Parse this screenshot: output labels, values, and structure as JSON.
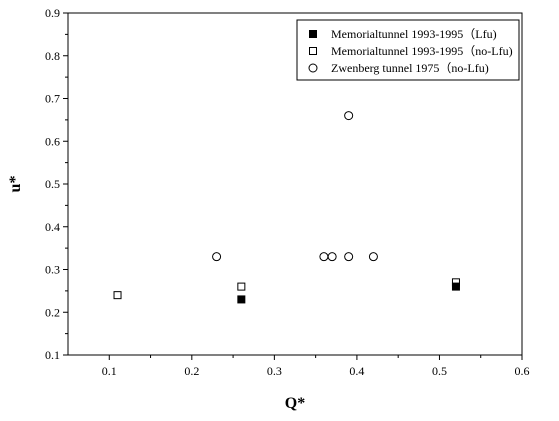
{
  "chart_data": {
    "type": "scatter",
    "xlabel": "Q*",
    "ylabel": "u*",
    "xlim": [
      0.05,
      0.6
    ],
    "ylim": [
      0.1,
      0.9
    ],
    "xticks": [
      0.1,
      0.2,
      0.3,
      0.4,
      0.5,
      0.6
    ],
    "yticks": [
      0.1,
      0.2,
      0.3,
      0.4,
      0.5,
      0.6,
      0.7,
      0.8,
      0.9
    ],
    "xtick_labels": [
      "0.1",
      "0.2",
      "0.3",
      "0.4",
      "0.5",
      "0.6"
    ],
    "ytick_labels": [
      "0.1",
      "0.2",
      "0.3",
      "0.4",
      "0.5",
      "0.6",
      "0.7",
      "0.8",
      "0.9"
    ],
    "legend_position": "top-right",
    "grid": false,
    "series": [
      {
        "name": "Memorialtunnel 1993-1995（Lfu)",
        "marker": "filled-square",
        "color": "#000000",
        "points": [
          {
            "x": 0.26,
            "y": 0.23
          },
          {
            "x": 0.52,
            "y": 0.26
          }
        ]
      },
      {
        "name": "Memorialtunnel 1993-1995（no-Lfu)",
        "marker": "open-square",
        "color": "#000000",
        "points": [
          {
            "x": 0.11,
            "y": 0.24
          },
          {
            "x": 0.26,
            "y": 0.26
          },
          {
            "x": 0.52,
            "y": 0.27
          }
        ]
      },
      {
        "name": "Zwenberg tunnel 1975（no-Lfu)",
        "marker": "open-circle",
        "color": "#000000",
        "points": [
          {
            "x": 0.23,
            "y": 0.33
          },
          {
            "x": 0.36,
            "y": 0.33
          },
          {
            "x": 0.37,
            "y": 0.33
          },
          {
            "x": 0.39,
            "y": 0.33
          },
          {
            "x": 0.42,
            "y": 0.33
          },
          {
            "x": 0.39,
            "y": 0.66
          }
        ]
      }
    ]
  }
}
